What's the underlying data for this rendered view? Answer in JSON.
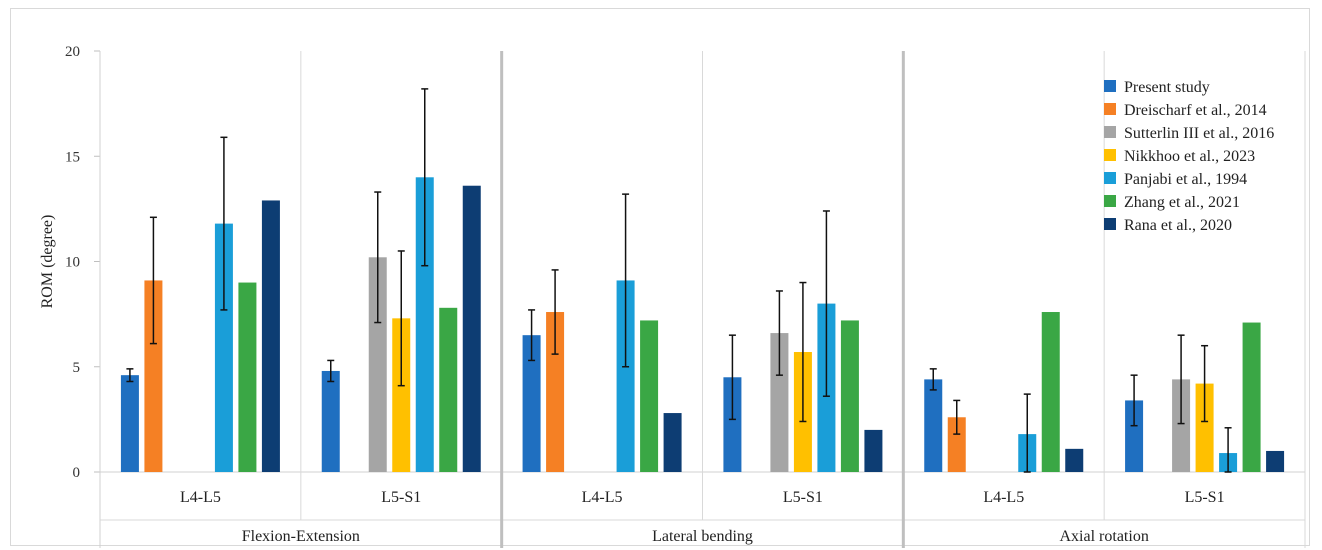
{
  "chart_data": {
    "type": "bar",
    "ylabel": "ROM (degree)",
    "ylim": [
      0,
      20
    ],
    "yticks": [
      0,
      5,
      10,
      15,
      20
    ],
    "grid": "vertical separators only",
    "legend_position": "top-right",
    "groups": [
      {
        "label": "Flexion-Extension",
        "categories": [
          "L4-L5",
          "L5-S1"
        ]
      },
      {
        "label": "Lateral bending",
        "categories": [
          "L4-L5",
          "L5-S1"
        ]
      },
      {
        "label": "Axial rotation",
        "categories": [
          "L4-L5",
          "L5-S1"
        ]
      }
    ],
    "series": [
      {
        "name": "Present study",
        "color": "#1f6fc0",
        "values": [
          4.6,
          4.8,
          6.5,
          4.5,
          4.4,
          3.4
        ],
        "errors": [
          0.3,
          0.5,
          1.2,
          2.0,
          0.5,
          1.2
        ]
      },
      {
        "name": "Dreischarf et al., 2014",
        "color": "#f58024",
        "values": [
          9.1,
          null,
          7.6,
          null,
          2.6,
          null
        ],
        "errors": [
          3.0,
          null,
          2.0,
          null,
          0.8,
          null
        ]
      },
      {
        "name": "Sutterlin III et al., 2016",
        "color": "#a5a5a5",
        "values": [
          null,
          10.2,
          null,
          6.6,
          null,
          4.4
        ],
        "errors": [
          null,
          3.1,
          null,
          2.0,
          null,
          2.1
        ]
      },
      {
        "name": "Nikkhoo et al., 2023",
        "color": "#ffc000",
        "values": [
          null,
          7.3,
          null,
          5.7,
          null,
          4.2
        ],
        "errors": [
          null,
          3.2,
          null,
          3.3,
          null,
          1.8
        ]
      },
      {
        "name": "Panjabi et al., 1994",
        "color": "#1a9ed8",
        "values": [
          11.8,
          14.0,
          9.1,
          8.0,
          1.8,
          0.9
        ],
        "errors": [
          4.1,
          4.2,
          4.1,
          4.4,
          1.9,
          1.2
        ]
      },
      {
        "name": "Zhang et al., 2021",
        "color": "#3aa745",
        "values": [
          9.0,
          7.8,
          7.2,
          7.2,
          7.6,
          7.1
        ],
        "errors": [
          null,
          null,
          null,
          null,
          null,
          null
        ]
      },
      {
        "name": "Rana et al., 2020",
        "color": "#0d3d73",
        "values": [
          12.9,
          13.6,
          2.8,
          2.0,
          1.1,
          1.0
        ],
        "errors": [
          null,
          null,
          null,
          null,
          null,
          null
        ]
      }
    ]
  }
}
